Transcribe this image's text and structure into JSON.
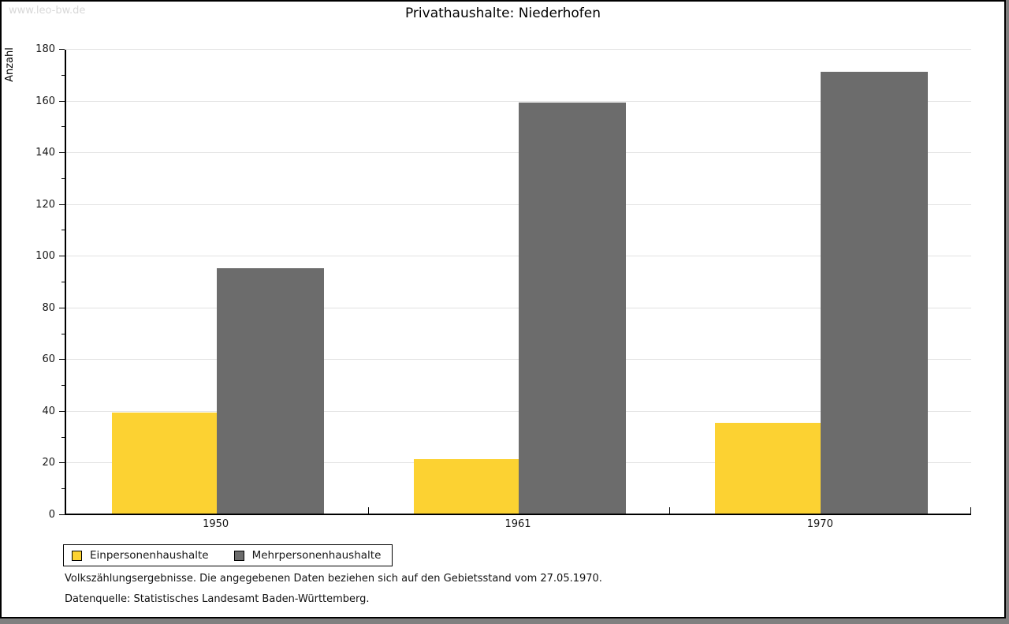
{
  "watermark": "www.leo-bw.de",
  "title": "Privathaushalte: Niederhofen",
  "footnotes": [
    "Volkszählungsergebnisse. Die angegebenen Daten beziehen sich auf den Gebietsstand vom 27.05.1970.",
    "Datenquelle: Statistisches Landesamt Baden-Württemberg."
  ],
  "colors": {
    "series_yellow": "#FCD232",
    "series_gray": "#6C6C6C",
    "gridline": "#E2E2E2",
    "watermark": "#D8D8D8"
  },
  "chart_data": {
    "type": "bar",
    "title": "Privathaushalte: Niederhofen",
    "categories": [
      "1950",
      "1961",
      "1970"
    ],
    "series": [
      {
        "name": "Einpersonenhaushalte",
        "color": "#FCD232",
        "values": [
          39,
          21,
          35
        ]
      },
      {
        "name": "Mehrpersonenhaushalte",
        "color": "#6C6C6C",
        "values": [
          95,
          159,
          171
        ]
      }
    ],
    "xlabel": "",
    "ylabel": "Anzahl",
    "ylim": [
      0,
      180
    ],
    "ytick_step": 20,
    "minor_tick_step": 10,
    "grid": true,
    "legend_position": "bottom-left"
  }
}
